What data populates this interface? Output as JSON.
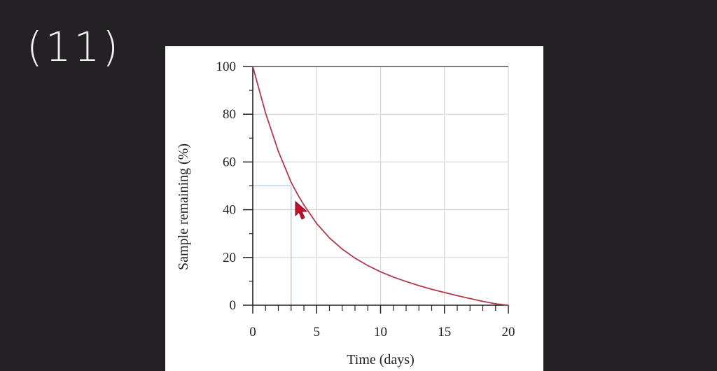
{
  "annotation": {
    "text": "(11)"
  },
  "chart_data": {
    "type": "line",
    "title": "",
    "xlabel": "Time (days)",
    "ylabel": "Sample remaining (%)",
    "xlim": [
      0,
      20
    ],
    "ylim": [
      0,
      100
    ],
    "x_ticks": [
      0,
      5,
      10,
      15,
      20
    ],
    "y_ticks": [
      0,
      20,
      40,
      60,
      80,
      100
    ],
    "grid": true,
    "series": [
      {
        "color": "#b03a48",
        "x": [
          0,
          1,
          2,
          3,
          3.5,
          4,
          5,
          6,
          7,
          8,
          9,
          10,
          11,
          12,
          13,
          14,
          15,
          16,
          17,
          18,
          19,
          20
        ],
        "y": [
          100,
          80.5,
          64.5,
          51.5,
          46.5,
          42,
          34.2,
          28.2,
          23.5,
          19.7,
          16.6,
          14,
          11.8,
          9.9,
          8.2,
          6.7,
          5.3,
          4,
          2.8,
          1.6,
          0.6,
          0
        ]
      }
    ],
    "half_life_guide": {
      "x": 3.0,
      "y": 50,
      "color": "#a9d3ea"
    }
  }
}
